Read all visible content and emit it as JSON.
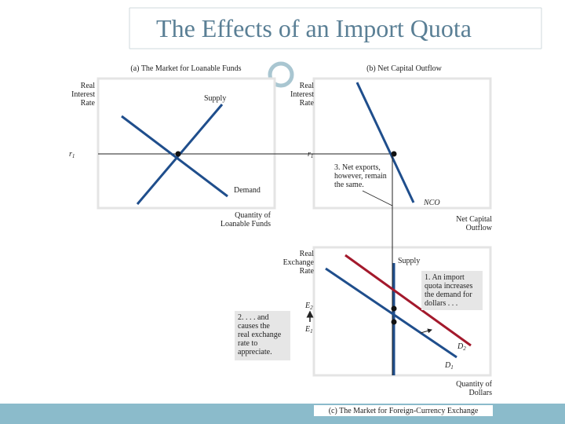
{
  "header": {
    "title": "The Effects of an Import Quota"
  },
  "panel_a": {
    "title": "(a) The Market for Loanable Funds",
    "y_axis_label": [
      "Real",
      "Interest",
      "Rate"
    ],
    "x_axis_label": [
      "Quantity of",
      "Loanable Funds"
    ],
    "rate_label": {
      "main": "r",
      "sub": "1"
    },
    "supply_label": "Supply",
    "demand_label": "Demand"
  },
  "panel_b": {
    "title": "(b) Net Capital Outflow",
    "y_axis_label": [
      "Real",
      "Interest",
      "Rate"
    ],
    "x_axis_label": [
      "Net Capital",
      "Outflow"
    ],
    "rate_label": {
      "main": "r",
      "sub": "1"
    },
    "curve_label": "NCO",
    "note": [
      "3. Net exports,",
      "however, remain",
      "the same."
    ]
  },
  "panel_c": {
    "title": "(c) The Market for Foreign-Currency Exchange",
    "y_axis_label": [
      "Real",
      "Exchange",
      "Rate"
    ],
    "x_axis_label": [
      "Quantity of",
      "Dollars"
    ],
    "supply_label": "Supply",
    "e2": {
      "main": "E",
      "sub": "2"
    },
    "e1": {
      "main": "E",
      "sub": "1"
    },
    "d2": {
      "main": "D",
      "sub": "2"
    },
    "d1": {
      "main": "D",
      "sub": "1"
    },
    "note_quota": [
      "1. An import",
      "quota increases",
      "the demand for",
      "dollars . . ."
    ],
    "note_appreciate": [
      "2. . . . and",
      "causes the",
      "real exchange",
      "rate to",
      "appreciate."
    ]
  }
}
